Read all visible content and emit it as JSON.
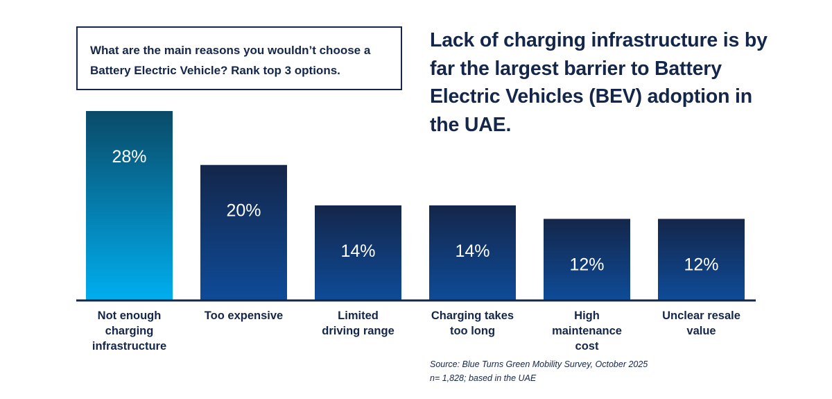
{
  "question": "What are the main reasons you wouldn’t choose a Battery Electric Vehicle? Rank top 3 options.",
  "headline": "Lack of charging infrastructure is by far the largest barrier to Battery Electric Vehicles (BEV) adoption in the UAE.",
  "source": {
    "line1": "Source: Blue Turns Green Mobility Survey, October 2025",
    "line2": "n= 1,828; based in the UAE"
  },
  "colors": {
    "highlight_top": "#0a4a68",
    "highlight_bottom": "#00aeef",
    "bar_top": "#14264a",
    "bar_bottom": "#0e4b98",
    "axis": "#14264a",
    "text": "#14264a"
  },
  "chart_data": {
    "type": "bar",
    "title": "What are the main reasons you wouldn’t choose a Battery Electric Vehicle? Rank top 3 options.",
    "xlabel": "",
    "ylabel": "",
    "ylim": [
      0,
      28
    ],
    "grid": false,
    "categories": [
      [
        "Not enough",
        "charging",
        "infrastructure"
      ],
      [
        "Too expensive"
      ],
      [
        "Limited",
        "driving range"
      ],
      [
        "Charging takes",
        "too long"
      ],
      [
        "High",
        "maintenance",
        "cost"
      ],
      [
        "Unclear resale",
        "value"
      ]
    ],
    "values": [
      28,
      20,
      14,
      14,
      12,
      12
    ],
    "value_labels": [
      "28%",
      "20%",
      "14%",
      "14%",
      "12%",
      "12%"
    ],
    "highlight_index": 0
  }
}
